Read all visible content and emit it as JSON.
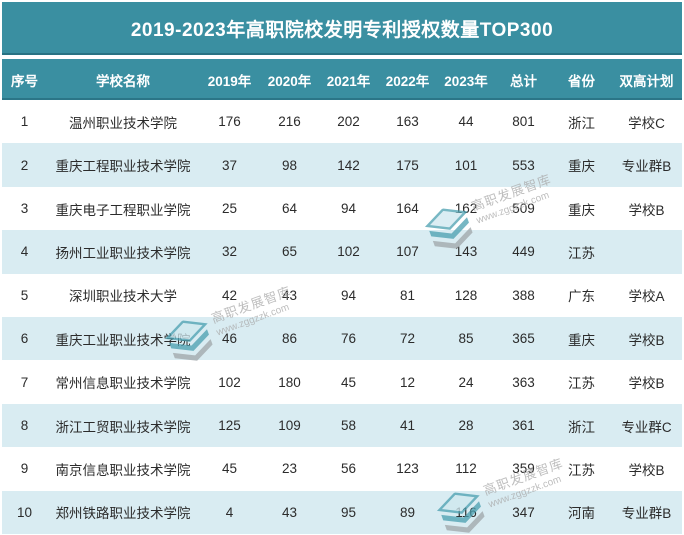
{
  "title": "2019-2023年高职院校发明专利授权数量TOP300",
  "watermark": {
    "brand": "高职发展智库",
    "url": "www.zggzzk.com"
  },
  "colors": {
    "teal_header": "#3A8FA1",
    "row_alt_blue": "#D9ECF2",
    "header_text": "#FFFFFF",
    "body_text": "#2B2B2B",
    "watermark_gray": "#A9A9A9"
  },
  "chart_data": {
    "type": "table",
    "title": "2019-2023年高职院校发明专利授权数量TOP300",
    "columns": [
      "序号",
      "学校名称",
      "2019年",
      "2020年",
      "2021年",
      "2022年",
      "2023年",
      "总计",
      "省份",
      "双高计划"
    ],
    "rows": [
      [
        "1",
        "温州职业技术学院",
        "176",
        "216",
        "202",
        "163",
        "44",
        "801",
        "浙江",
        "学校C"
      ],
      [
        "2",
        "重庆工程职业技术学院",
        "37",
        "98",
        "142",
        "175",
        "101",
        "553",
        "重庆",
        "专业群B"
      ],
      [
        "3",
        "重庆电子工程职业学院",
        "25",
        "64",
        "94",
        "164",
        "162",
        "509",
        "重庆",
        "学校B"
      ],
      [
        "4",
        "扬州工业职业技术学院",
        "32",
        "65",
        "102",
        "107",
        "143",
        "449",
        "江苏",
        ""
      ],
      [
        "5",
        "深圳职业技术大学",
        "42",
        "43",
        "94",
        "81",
        "128",
        "388",
        "广东",
        "学校A"
      ],
      [
        "6",
        "重庆工业职业技术学院",
        "46",
        "86",
        "76",
        "72",
        "85",
        "365",
        "重庆",
        "学校B"
      ],
      [
        "7",
        "常州信息职业技术学院",
        "102",
        "180",
        "45",
        "12",
        "24",
        "363",
        "江苏",
        "学校B"
      ],
      [
        "8",
        "浙江工贸职业技术学院",
        "125",
        "109",
        "58",
        "41",
        "28",
        "361",
        "浙江",
        "专业群C"
      ],
      [
        "9",
        "南京信息职业技术学院",
        "45",
        "23",
        "56",
        "123",
        "112",
        "359",
        "江苏",
        "学校B"
      ],
      [
        "10",
        "郑州铁路职业技术学院",
        "4",
        "43",
        "95",
        "89",
        "116",
        "347",
        "河南",
        "专业群B"
      ]
    ]
  }
}
